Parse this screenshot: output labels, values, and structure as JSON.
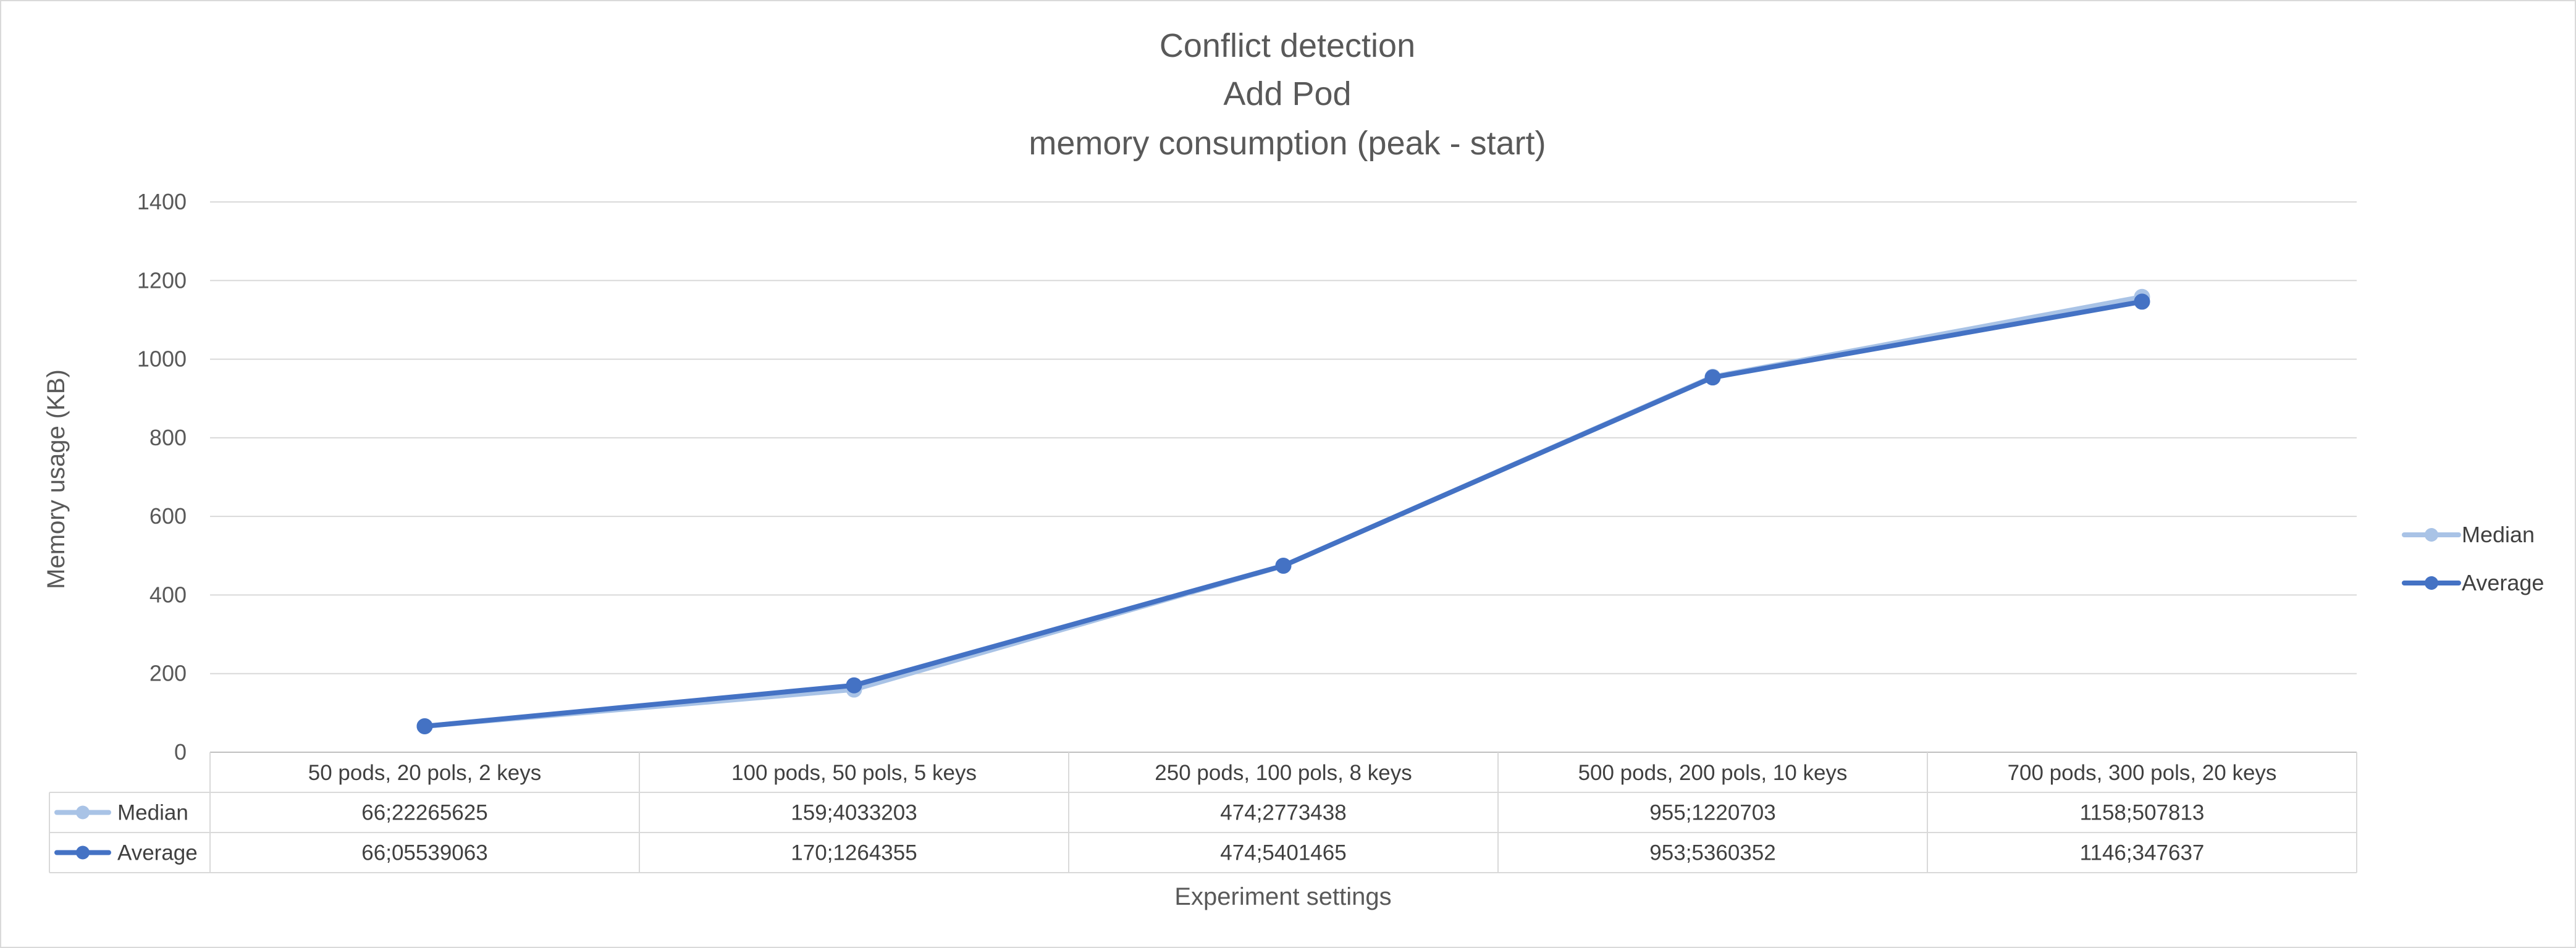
{
  "chart_data": {
    "type": "line",
    "title_lines": [
      "Conflict detection",
      "Add Pod",
      "memory consumption (peak - start)"
    ],
    "xlabel": "Experiment settings",
    "ylabel": "Memory usage (KB)",
    "ylim": [
      0,
      1400
    ],
    "yticks": [
      0,
      200,
      400,
      600,
      800,
      1000,
      1200,
      1400
    ],
    "grid": true,
    "legend_position": "right",
    "categories": [
      "50 pods, 20 pols, 2 keys",
      "100 pods, 50 pols, 5 keys",
      "250 pods, 100 pols, 8 keys",
      "500 pods, 200 pols, 10 keys",
      "700 pods, 300 pols, 20 keys"
    ],
    "series": [
      {
        "name": "Median",
        "color": "#A9C3E6",
        "values": [
          66.22265625,
          159.4033203,
          474.2773438,
          955.1220703,
          1158.507813
        ],
        "table_labels": [
          "66;22265625",
          "159;4033203",
          "474;2773438",
          "955;1220703",
          "1158;507813"
        ]
      },
      {
        "name": "Average",
        "color": "#4472C4",
        "values": [
          66.05539063,
          170.1264355,
          474.5401465,
          953.5360352,
          1146.347637
        ],
        "table_labels": [
          "66;05539063",
          "170;1264355",
          "474;5401465",
          "953;5360352",
          "1146;347637"
        ]
      }
    ]
  }
}
